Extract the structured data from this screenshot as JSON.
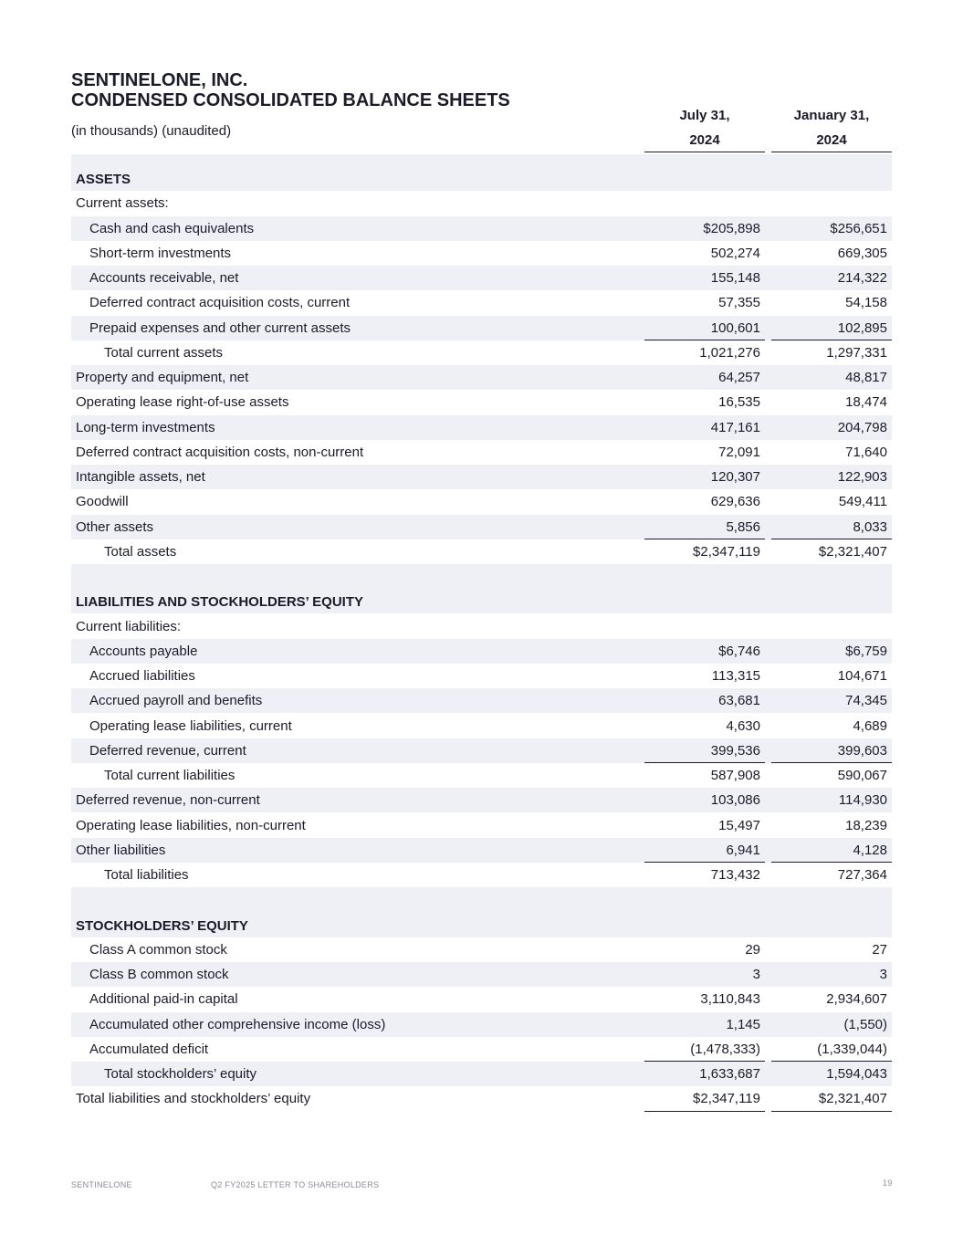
{
  "header": {
    "company": "SENTINELONE, INC.",
    "title": "CONDENSED CONSOLIDATED BALANCE SHEETS",
    "subtitle": "(in thousands) (unaudited)",
    "columns": [
      [
        "July 31,",
        "2024"
      ],
      [
        "January 31,",
        "2024"
      ]
    ]
  },
  "sections": [
    {
      "title": "ASSETS",
      "rows": [
        {
          "label": "Current assets:",
          "level": 0
        },
        {
          "label": "Cash and cash equivalents",
          "level": 1,
          "values": [
            "$205,898",
            "$256,651"
          ]
        },
        {
          "label": "Short-term investments",
          "level": 1,
          "values": [
            "502,274",
            "669,305"
          ]
        },
        {
          "label": "Accounts receivable, net",
          "level": 1,
          "values": [
            "155,148",
            "214,322"
          ]
        },
        {
          "label": "Deferred contract acquisition costs, current",
          "level": 1,
          "values": [
            "57,355",
            "54,158"
          ]
        },
        {
          "label": "Prepaid expenses and other current assets",
          "level": 1,
          "values": [
            "100,601",
            "102,895"
          ]
        },
        {
          "label": "Total current assets",
          "level": 2,
          "values": [
            "1,021,276",
            "1,297,331"
          ],
          "rules": "above"
        },
        {
          "label": "Property and equipment, net",
          "level": 0,
          "values": [
            "64,257",
            "48,817"
          ]
        },
        {
          "label": "Operating lease right-of-use assets",
          "level": 0,
          "values": [
            "16,535",
            "18,474"
          ]
        },
        {
          "label": "Long-term investments",
          "level": 0,
          "values": [
            "417,161",
            "204,798"
          ]
        },
        {
          "label": "Deferred contract acquisition costs, non-current",
          "level": 0,
          "values": [
            "72,091",
            "71,640"
          ]
        },
        {
          "label": "Intangible assets, net",
          "level": 0,
          "values": [
            "120,307",
            "122,903"
          ]
        },
        {
          "label": "Goodwill",
          "level": 0,
          "values": [
            "629,636",
            "549,411"
          ]
        },
        {
          "label": "Other assets",
          "level": 0,
          "values": [
            "5,856",
            "8,033"
          ]
        },
        {
          "label": "Total assets",
          "level": 2,
          "values": [
            "$2,347,119",
            "$2,321,407"
          ],
          "rules": "both"
        }
      ]
    },
    {
      "title": "LIABILITIES AND STOCKHOLDERS’ EQUITY",
      "rows": [
        {
          "label": "Current liabilities:",
          "level": 0
        },
        {
          "label": "Accounts payable",
          "level": 1,
          "values": [
            "$6,746",
            "$6,759"
          ]
        },
        {
          "label": "Accrued liabilities",
          "level": 1,
          "values": [
            "113,315",
            "104,671"
          ]
        },
        {
          "label": "Accrued payroll and benefits",
          "level": 1,
          "values": [
            "63,681",
            "74,345"
          ]
        },
        {
          "label": "Operating lease liabilities, current",
          "level": 1,
          "values": [
            "4,630",
            "4,689"
          ]
        },
        {
          "label": "Deferred revenue, current",
          "level": 1,
          "values": [
            "399,536",
            "399,603"
          ]
        },
        {
          "label": "Total current liabilities",
          "level": 2,
          "values": [
            "587,908",
            "590,067"
          ],
          "rules": "above"
        },
        {
          "label": "Deferred revenue, non-current",
          "level": 0,
          "values": [
            "103,086",
            "114,930"
          ]
        },
        {
          "label": "Operating lease liabilities, non-current",
          "level": 0,
          "values": [
            "15,497",
            "18,239"
          ]
        },
        {
          "label": "Other liabilities",
          "level": 0,
          "values": [
            "6,941",
            "4,128"
          ]
        },
        {
          "label": "Total liabilities",
          "level": 2,
          "values": [
            "713,432",
            "727,364"
          ],
          "rules": "both"
        }
      ]
    },
    {
      "title": "STOCKHOLDERS’ EQUITY",
      "rows": [
        {
          "label": "Class A common stock",
          "level": 1,
          "values": [
            "29",
            "27"
          ]
        },
        {
          "label": "Class B common stock",
          "level": 1,
          "values": [
            "3",
            "3"
          ]
        },
        {
          "label": "Additional paid-in capital",
          "level": 1,
          "values": [
            "3,110,843",
            "2,934,607"
          ]
        },
        {
          "label": "Accumulated other comprehensive income (loss)",
          "level": 1,
          "values": [
            "1,145",
            "(1,550)"
          ]
        },
        {
          "label": "Accumulated deficit",
          "level": 1,
          "values": [
            "(1,478,333)",
            "(1,339,044)"
          ]
        },
        {
          "label": "Total stockholders’ equity",
          "level": 2,
          "values": [
            "1,633,687",
            "1,594,043"
          ],
          "rules": "above"
        },
        {
          "label": "Total liabilities and stockholders’ equity",
          "level": 0,
          "values": [
            "$2,347,119",
            "$2,321,407"
          ],
          "rules": "below"
        }
      ]
    }
  ],
  "footer": {
    "left": "SENTINELONE",
    "center": "Q2 FY2025 LETTER TO SHAREHOLDERS",
    "page": "19"
  }
}
